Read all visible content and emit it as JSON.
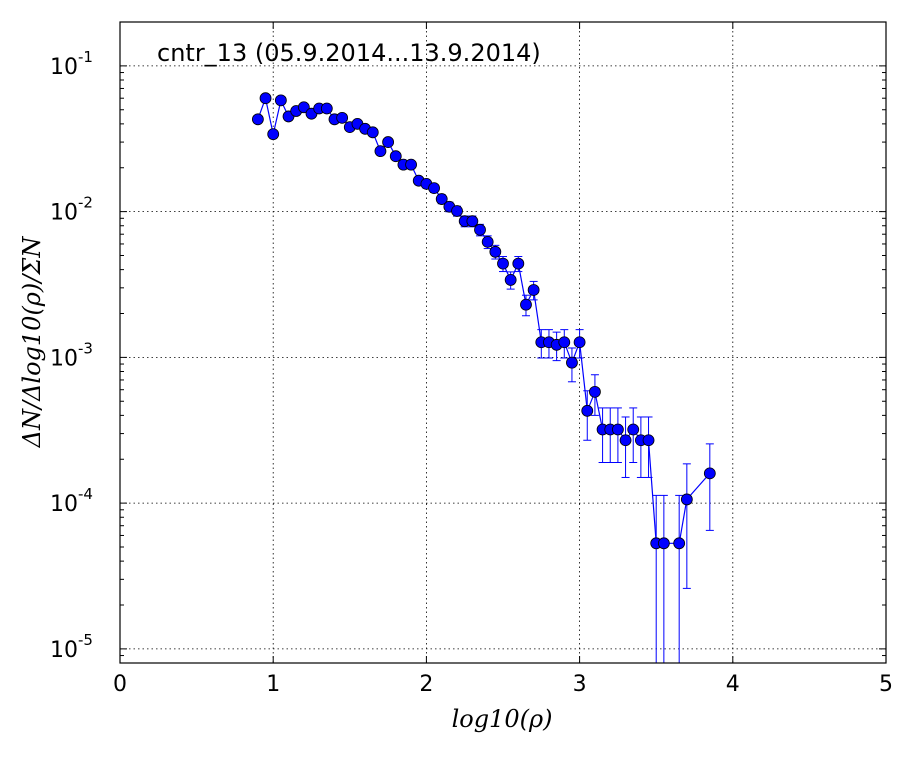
{
  "chart_data": {
    "type": "scatter",
    "title": "cntr_13 (05.9.2014...13.9.2014)",
    "xlabel": "log10(ρ)",
    "ylabel": "ΔN/Δlog10(ρ)/ΣN",
    "xlim": [
      0,
      5
    ],
    "ylim": [
      8e-06,
      0.2
    ],
    "yscale": "log",
    "grid": true,
    "x_ticks": [
      "0",
      "1",
      "2",
      "3",
      "4",
      "5"
    ],
    "y_ticks": [
      {
        "base": "10",
        "exp": "-1"
      },
      {
        "base": "10",
        "exp": "-2"
      },
      {
        "base": "10",
        "exp": "-3"
      },
      {
        "base": "10",
        "exp": "-4"
      },
      {
        "base": "10",
        "exp": "-5"
      }
    ],
    "color": "#0000ff",
    "series": [
      {
        "x": [
          0.9,
          0.95,
          1.0,
          1.05,
          1.1,
          1.15,
          1.2,
          1.25,
          1.3,
          1.35,
          1.4,
          1.45,
          1.5,
          1.55,
          1.6,
          1.65,
          1.7,
          1.75,
          1.8,
          1.85,
          1.9,
          1.95,
          2.0,
          2.05,
          2.1,
          2.15,
          2.2,
          2.25,
          2.3,
          2.35,
          2.4,
          2.45,
          2.5,
          2.55,
          2.6,
          2.65,
          2.7,
          2.75,
          2.8,
          2.85,
          2.9,
          2.95,
          3.0,
          3.05,
          3.1,
          3.15,
          3.2,
          3.25,
          3.3,
          3.35,
          3.4,
          3.45,
          3.5,
          3.55,
          3.65,
          3.7,
          3.85
        ],
        "y": [
          0.043,
          0.06,
          0.034,
          0.058,
          0.045,
          0.049,
          0.052,
          0.047,
          0.051,
          0.051,
          0.043,
          0.044,
          0.038,
          0.04,
          0.037,
          0.035,
          0.026,
          0.03,
          0.024,
          0.021,
          0.021,
          0.0163,
          0.0155,
          0.0145,
          0.0122,
          0.0108,
          0.0101,
          0.0086,
          0.0086,
          0.0075,
          0.0062,
          0.0053,
          0.0044,
          0.0034,
          0.0044,
          0.0023,
          0.0029,
          0.00127,
          0.00127,
          0.00122,
          0.00127,
          0.00092,
          0.00127,
          0.00043,
          0.00058,
          0.00032,
          0.00032,
          0.00032,
          0.00027,
          0.00032,
          0.00027,
          0.00027,
          5.3e-05,
          5.3e-05,
          5.3e-05,
          0.000106,
          0.00016
        ],
        "err": [
          0.0016,
          0.0019,
          0.0015,
          0.0019,
          0.0017,
          0.0018,
          0.0018,
          0.0017,
          0.0018,
          0.0018,
          0.0016,
          0.0017,
          0.0015,
          0.0016,
          0.0015,
          0.0015,
          0.0013,
          0.0014,
          0.0012,
          0.0011,
          0.0011,
          0.001,
          0.001,
          0.00095,
          0.00087,
          0.00082,
          0.00079,
          0.00073,
          0.00073,
          0.00068,
          0.00062,
          0.00057,
          0.00052,
          0.00046,
          0.00052,
          0.00037,
          0.00042,
          0.00028,
          0.00028,
          0.00027,
          0.00028,
          0.00024,
          0.00028,
          0.00016,
          0.00018,
          0.00013,
          0.00013,
          0.00013,
          0.00012,
          0.00013,
          0.00012,
          0.00012,
          6e-05,
          6e-05,
          6e-05,
          8e-05,
          9.5e-05
        ]
      }
    ]
  }
}
